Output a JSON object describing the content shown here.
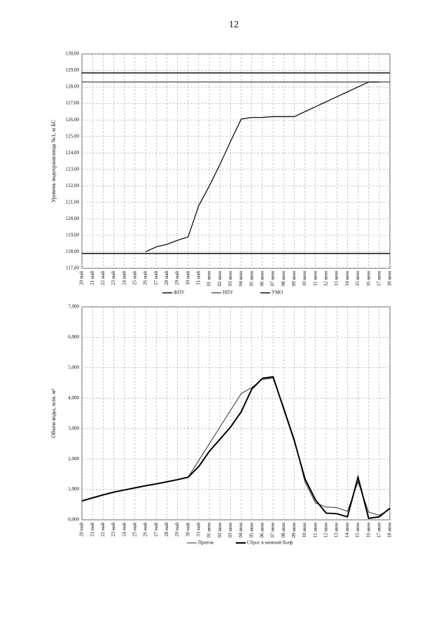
{
  "page_number": "12",
  "chart_data": [
    {
      "type": "line",
      "y_label": "Уровень водохранилища №1, м БС",
      "categories": [
        "20 май",
        "21 май",
        "22 май",
        "23 май",
        "24 май",
        "25 май",
        "26 май",
        "27 май",
        "28 май",
        "29 май",
        "30 май",
        "31 май",
        "01 июн",
        "02 июн",
        "03 июн",
        "04 июн",
        "05 июн",
        "06 июн",
        "07 июн",
        "08 июн",
        "09 июн",
        "10 июн",
        "11 июн",
        "12 июн",
        "13 июн",
        "14 июн",
        "15 июн",
        "16 июн",
        "17 июн",
        "18 июн"
      ],
      "ylim": [
        117,
        130
      ],
      "yticks": [
        {
          "value": 117,
          "label": "117,00"
        },
        {
          "value": 118,
          "label": "118,00"
        },
        {
          "value": 119,
          "label": "119,00"
        },
        {
          "value": 120,
          "label": "120,00"
        },
        {
          "value": 121,
          "label": "121,00"
        },
        {
          "value": 122,
          "label": "122,00"
        },
        {
          "value": 123,
          "label": "123,00"
        },
        {
          "value": 124,
          "label": "124,00"
        },
        {
          "value": 125,
          "label": "125,00"
        },
        {
          "value": 126,
          "label": "126,00"
        },
        {
          "value": 127,
          "label": "127,00"
        },
        {
          "value": 128,
          "label": "128,00"
        },
        {
          "value": 129,
          "label": "129,00"
        },
        {
          "value": 130,
          "label": "130,00"
        }
      ],
      "grid": true,
      "series": [
        {
          "name": "ФПУ",
          "color": "#222",
          "linewidth": 1.6,
          "values": [
            128.85,
            128.85,
            128.85,
            128.85,
            128.85,
            128.85,
            128.85,
            128.85,
            128.85,
            128.85,
            128.85,
            128.85,
            128.85,
            128.85,
            128.85,
            128.85,
            128.85,
            128.85,
            128.85,
            128.85,
            128.85,
            128.85,
            128.85,
            128.85,
            128.85,
            128.85,
            128.85,
            128.85,
            128.85,
            128.85
          ]
        },
        {
          "name": "НПУ",
          "color": "#444",
          "linewidth": 1.3,
          "values": [
            128.3,
            128.3,
            128.3,
            128.3,
            128.3,
            128.3,
            128.3,
            128.3,
            128.3,
            128.3,
            128.3,
            128.3,
            128.3,
            128.3,
            128.3,
            128.3,
            128.3,
            128.3,
            128.3,
            128.3,
            128.3,
            128.3,
            128.3,
            128.3,
            128.3,
            128.3,
            128.3,
            128.3,
            128.3,
            128.3
          ]
        },
        {
          "name": "УМО",
          "color": "#222",
          "linewidth": 1.6,
          "values": [
            117.9,
            117.9,
            117.9,
            117.9,
            117.9,
            117.9,
            117.9,
            117.9,
            117.9,
            117.9,
            117.9,
            117.9,
            117.9,
            117.9,
            117.9,
            117.9,
            117.9,
            117.9,
            117.9,
            117.9,
            117.9,
            117.9,
            117.9,
            117.9,
            117.9,
            117.9,
            117.9,
            117.9,
            117.9,
            117.9
          ]
        },
        {
          "color": "#111",
          "linewidth": 1.3,
          "values": [
            null,
            null,
            null,
            null,
            null,
            null,
            118.0,
            118.3,
            118.45,
            118.7,
            118.9,
            120.8,
            122.0,
            123.3,
            124.7,
            126.05,
            126.15,
            126.15,
            126.2,
            126.2,
            126.2,
            126.5,
            126.8,
            127.1,
            127.4,
            127.7,
            128.0,
            128.3,
            128.3,
            null
          ]
        }
      ]
    },
    {
      "type": "line",
      "y_label": "Объем воды, млн. м³",
      "categories": [
        "20 май",
        "21 май",
        "22 май",
        "23 май",
        "24 май",
        "25 май",
        "26 май",
        "27 май",
        "28 май",
        "29 май",
        "30 май",
        "31 май",
        "01 июн",
        "02 июн",
        "03 июн",
        "04 июн",
        "05 июн",
        "06 июн",
        "07 июн",
        "08 июн",
        "09 июн",
        "10 июн",
        "11 июн",
        "12 июн",
        "13 июн",
        "14 июн",
        "15 июн",
        "16 июн",
        "17 июн",
        "18 июн"
      ],
      "ylim": [
        0,
        7
      ],
      "yticks": [
        {
          "value": 0,
          "label": "0,000"
        },
        {
          "value": 1,
          "label": "1,000"
        },
        {
          "value": 2,
          "label": "2,000"
        },
        {
          "value": 3,
          "label": "3,000"
        },
        {
          "value": 4,
          "label": "4,000"
        },
        {
          "value": 5,
          "label": "5,000"
        },
        {
          "value": 6,
          "label": "6,000"
        },
        {
          "value": 7,
          "label": "7,000"
        }
      ],
      "grid": true,
      "series": [
        {
          "name": "Приток",
          "color": "#333",
          "linewidth": 1,
          "values": [
            0.62,
            0.72,
            0.82,
            0.91,
            0.98,
            1.05,
            1.12,
            1.18,
            1.25,
            1.32,
            1.4,
            1.95,
            2.5,
            3.05,
            3.6,
            4.15,
            4.35,
            4.62,
            4.65,
            3.7,
            2.65,
            1.25,
            0.55,
            0.42,
            0.4,
            0.28,
            1.25,
            0.25,
            0.15,
            0.35
          ]
        },
        {
          "name": "Сброс в нижний бьеф",
          "color": "#000",
          "linewidth": 2,
          "values": [
            0.62,
            0.72,
            0.82,
            0.91,
            0.98,
            1.05,
            1.12,
            1.18,
            1.25,
            1.32,
            1.4,
            1.75,
            2.25,
            2.65,
            3.05,
            3.55,
            4.3,
            4.65,
            4.7,
            3.65,
            2.6,
            1.35,
            0.65,
            0.22,
            0.2,
            0.1,
            1.4,
            0.05,
            0.1,
            0.38
          ]
        }
      ]
    }
  ]
}
